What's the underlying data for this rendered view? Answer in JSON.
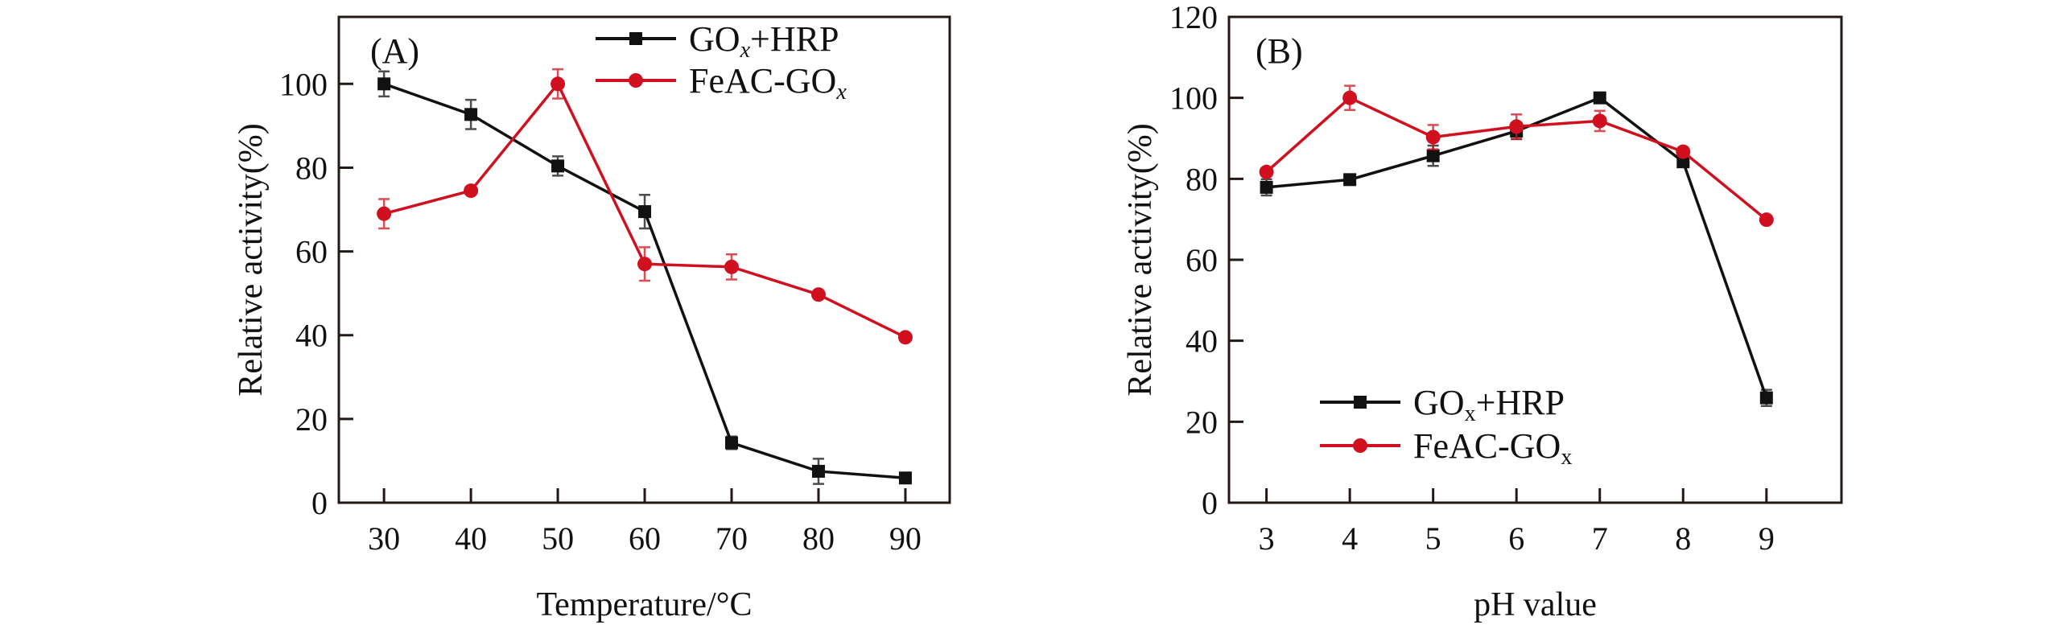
{
  "chart_data": [
    {
      "type": "line",
      "panel_label": "(A)",
      "xlabel": "Temperature/°C",
      "ylabel": "Relative activity(%)",
      "x": [
        30,
        40,
        50,
        60,
        70,
        80,
        90
      ],
      "xticks": [
        30,
        40,
        50,
        60,
        70,
        80,
        90
      ],
      "yticks": [
        0,
        20,
        40,
        60,
        80,
        100
      ],
      "xlim": [
        24.8,
        95.1
      ],
      "ylim": [
        0,
        116
      ],
      "legend_placement": "top-right",
      "legend_italic_subscript": true,
      "series": [
        {
          "name": "GOx+HRP",
          "name_parts": [
            "GO",
            "x",
            "+HRP"
          ],
          "color": "#111111",
          "marker": "square",
          "values": [
            100,
            92.7,
            80.4,
            69.5,
            14.3,
            7.5,
            5.9
          ],
          "errors": [
            3,
            3.5,
            2.3,
            4,
            1.5,
            3,
            1
          ]
        },
        {
          "name": "FeAC-GOx",
          "name_parts": [
            "FeAC-GO",
            "x",
            ""
          ],
          "color": "#d0101e",
          "marker": "circle",
          "values": [
            69,
            74.5,
            100,
            57,
            56.3,
            49.7,
            39.5
          ],
          "errors": [
            3.5,
            0.5,
            3.5,
            4,
            3,
            0.5,
            0.5
          ]
        }
      ]
    },
    {
      "type": "line",
      "panel_label": "(B)",
      "xlabel": "pH value",
      "ylabel": "Relative activity(%)",
      "x": [
        3,
        4,
        5,
        6,
        7,
        8,
        9
      ],
      "xticks": [
        3,
        4,
        5,
        6,
        7,
        8,
        9
      ],
      "yticks": [
        0,
        20,
        40,
        60,
        80,
        100,
        120
      ],
      "xlim": [
        2.55,
        9.9
      ],
      "ylim": [
        0,
        120
      ],
      "legend_placement": "bottom-center",
      "legend_italic_subscript": false,
      "series": [
        {
          "name": "GOx+HRP",
          "name_parts": [
            "GO",
            "x",
            "+HRP"
          ],
          "color": "#111111",
          "marker": "square",
          "values": [
            77.9,
            79.8,
            85.7,
            91.8,
            100,
            84.2,
            25.9
          ],
          "errors": [
            2,
            0.5,
            2.5,
            2,
            1,
            0.5,
            2
          ]
        },
        {
          "name": "FeAC-GOx",
          "name_parts": [
            "FeAC-GO",
            "x",
            ""
          ],
          "color": "#d0101e",
          "marker": "circle",
          "values": [
            81.7,
            100,
            90.3,
            92.9,
            94.3,
            86.7,
            69.9
          ],
          "errors": [
            0.5,
            3,
            3,
            3,
            2.5,
            1,
            0.5
          ]
        }
      ]
    }
  ]
}
